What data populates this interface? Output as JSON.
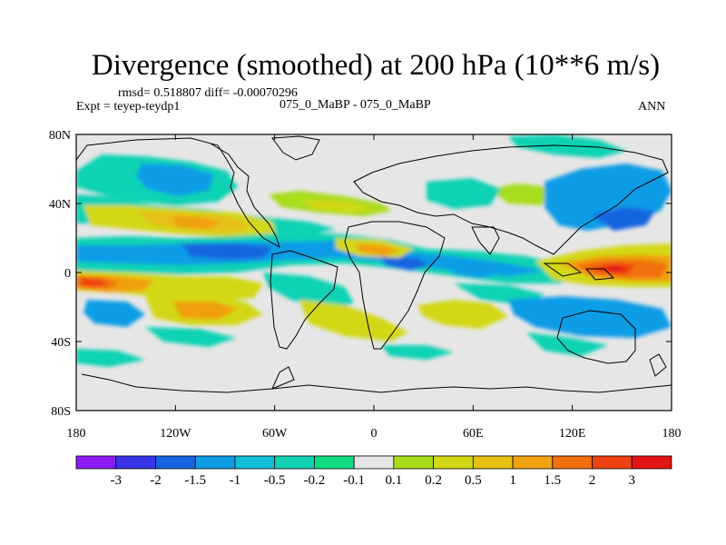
{
  "header": {
    "title": "Divergence (smoothed) at 200 hPa (10**6 m/s)",
    "stats": "rmsd= 0.518807 diff= -0.00070296",
    "experiment": "Expt = teyep-teydp1",
    "case": "075_0_MaBP - 075_0_MaBP",
    "season": "ANN"
  },
  "axes": {
    "lat_ticks": [
      "80N",
      "40N",
      "0",
      "40S",
      "80S"
    ],
    "lon_ticks": [
      "180",
      "120W",
      "60W",
      "0",
      "60E",
      "120E",
      "180"
    ]
  },
  "colorbar": {
    "colors": [
      "#8d1cf3",
      "#3a35e8",
      "#1565e0",
      "#0f9ce6",
      "#10c0d6",
      "#10d2b4",
      "#0fdc84",
      "#e6e6e6",
      "#a8dc1a",
      "#d2d814",
      "#e6c012",
      "#f0a010",
      "#f07010",
      "#f04010",
      "#e41414"
    ],
    "labels": [
      "-3",
      "-2",
      "-1.5",
      "-1",
      "-0.5",
      "-0.2",
      "-0.1",
      "0.1",
      "0.2",
      "0.5",
      "1",
      "1.5",
      "2",
      "3"
    ]
  }
}
